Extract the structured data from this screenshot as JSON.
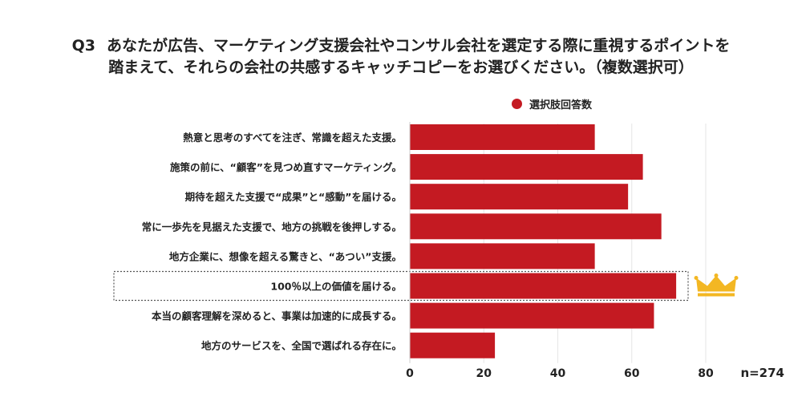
{
  "title": {
    "number": "Q3",
    "line1": "あなたが広告、マーケティング支援会社やコンサル会社を選定する際に重視するポイントを",
    "line2": "踏まえて、それらの会社の共感するキャッチコピーをお選びください。（複数選択可）"
  },
  "legend_label": "選択肢回答数",
  "sample_size": "n=274",
  "colors": {
    "bar": "#c41a22",
    "crown": "#f3b723",
    "highlight_border": "#555555"
  },
  "highlight_icon": "crown-icon",
  "chart_data": {
    "type": "bar",
    "orientation": "horizontal",
    "categories": [
      "熱意と思考のすべてを注ぎ、常識を超えた支援。",
      "施策の前に、“顧客”を見つめ直すマーケティング。",
      "期待を超えた支援で“成果”と“感動”を届ける。",
      "常に一歩先を見据えた支援で、地方の挑戦を後押しする。",
      "地方企業に、想像を超える驚きと、“あつい”支援。",
      "100％以上の価値を届ける。",
      "本当の顧客理解を深めると、事業は加速的に成長する。",
      "地方のサービスを、全国で選ばれる存在に。"
    ],
    "series": [
      {
        "name": "選択肢回答数",
        "values": [
          50,
          63,
          59,
          68,
          50,
          72,
          66,
          23
        ]
      }
    ],
    "xlim": [
      0,
      80
    ],
    "xticks": [
      "0",
      "20",
      "40",
      "60",
      "80"
    ],
    "grid": true,
    "legend_position": "top-right",
    "highlighted_category_index": 5
  }
}
